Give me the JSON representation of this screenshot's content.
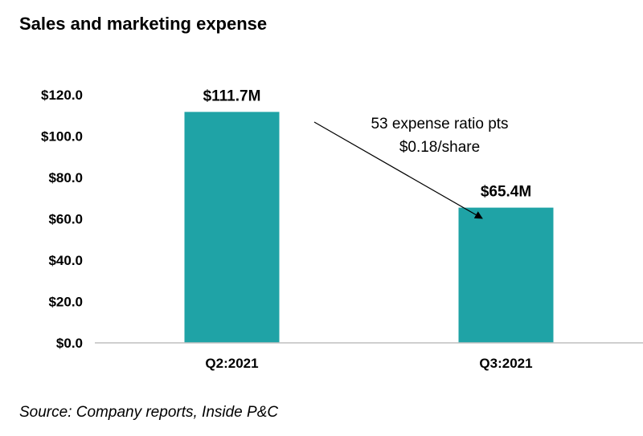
{
  "chart_data": {
    "type": "bar",
    "title": "Sales and marketing expense",
    "categories": [
      "Q2:2021",
      "Q3:2021"
    ],
    "values": [
      111.7,
      65.4
    ],
    "data_labels": [
      "$111.7M",
      "$65.4M"
    ],
    "ylim": [
      0,
      120
    ],
    "yticks": [
      0,
      20,
      40,
      60,
      80,
      100,
      120
    ],
    "ytick_labels": [
      "$0.0",
      "$20.0",
      "$40.0",
      "$60.0",
      "$80.0",
      "$100.0",
      "$120.0"
    ],
    "bar_color": "#1fa3a6",
    "grid": false,
    "legend": "none",
    "annotation": {
      "lines": [
        "53 expense ratio pts",
        "$0.18/share"
      ],
      "arrow": "from Q2:2021 bar toward Q3:2021 bar"
    }
  },
  "source": "Source: Company reports, Inside P&C"
}
